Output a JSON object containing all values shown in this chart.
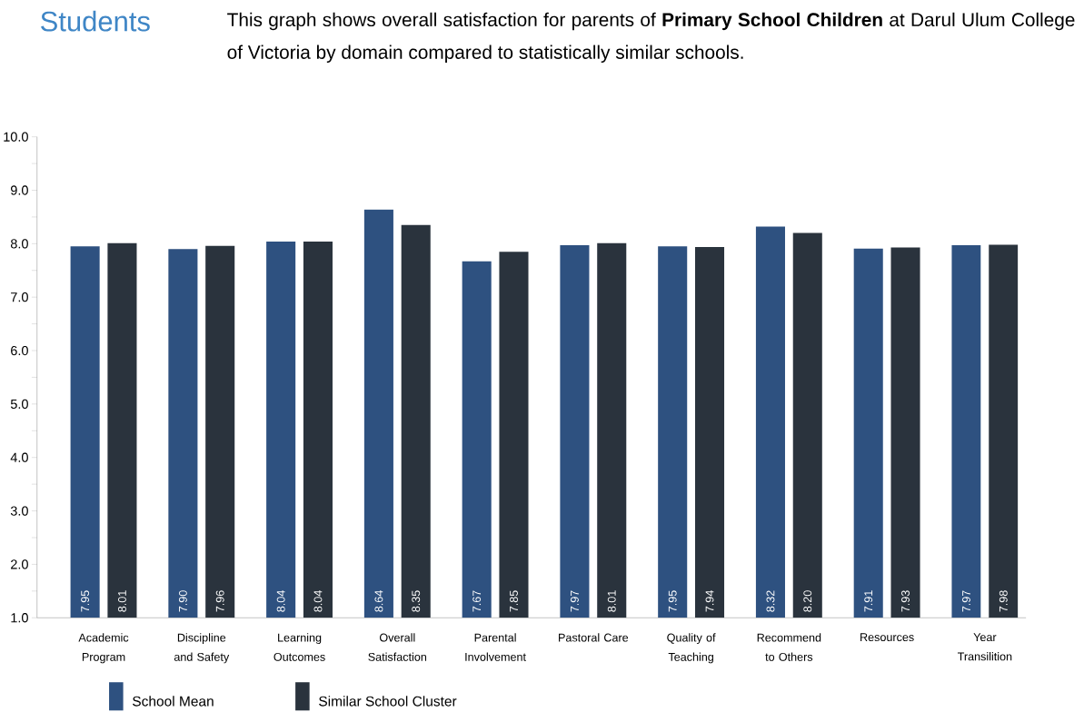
{
  "chart_data": {
    "type": "bar",
    "title": "Students",
    "subtitle": "This graph shows overall satisfaction for parents of **Primary School Children** at Darul Ulum College of Victoria by domain compared to statistically similar schools.",
    "categories": [
      "Academic Program",
      "Discipline and Safety",
      "Learning Outcomes",
      "Overall Satisfaction",
      "Parental Involvement",
      "Pastoral Care",
      "Quality of Teaching",
      "Recommend to Others",
      "Resources",
      "Year Transilition"
    ],
    "series": [
      {
        "name": "School Mean",
        "color": "#2e5180",
        "values": [
          7.95,
          7.9,
          8.04,
          8.64,
          7.67,
          7.97,
          7.95,
          8.32,
          7.91,
          7.97
        ],
        "value_labels": [
          "7.95",
          "7.90",
          "8.04",
          "8.64",
          "7.67",
          "7.97",
          "7.95",
          "8.32",
          "7.91",
          "7.97"
        ]
      },
      {
        "name": "Similar School Cluster",
        "color": "#2a333d",
        "values": [
          8.01,
          7.96,
          8.04,
          8.35,
          7.85,
          8.01,
          7.94,
          8.2,
          7.93,
          7.98
        ],
        "value_labels": [
          "8.01",
          "7.96",
          "8.04",
          "8.35",
          "7.85",
          "8.01",
          "7.94",
          "8.20",
          "7.93",
          "7.98"
        ]
      }
    ],
    "ylim": [
      1,
      10
    ],
    "yticks": [
      {
        "value": 1,
        "label": "1.0"
      },
      {
        "value": 1.5,
        "label": null
      },
      {
        "value": 2,
        "label": "2.0"
      },
      {
        "value": 2.5,
        "label": null
      },
      {
        "value": 3,
        "label": "3.0"
      },
      {
        "value": 3.5,
        "label": null
      },
      {
        "value": 4,
        "label": "4.0"
      },
      {
        "value": 4.5,
        "label": null
      },
      {
        "value": 5,
        "label": "5.0"
      },
      {
        "value": 5.5,
        "label": null
      },
      {
        "value": 6,
        "label": "6.0"
      },
      {
        "value": 6.5,
        "label": null
      },
      {
        "value": 7,
        "label": "7.0"
      },
      {
        "value": 7.5,
        "label": null
      },
      {
        "value": 8,
        "label": "8.0"
      },
      {
        "value": 8.5,
        "label": null
      },
      {
        "value": 9,
        "label": "9.0"
      },
      {
        "value": 9.5,
        "label": null
      },
      {
        "value": 10,
        "label": "10.0"
      }
    ],
    "grid": false,
    "legend": "bottom left"
  }
}
